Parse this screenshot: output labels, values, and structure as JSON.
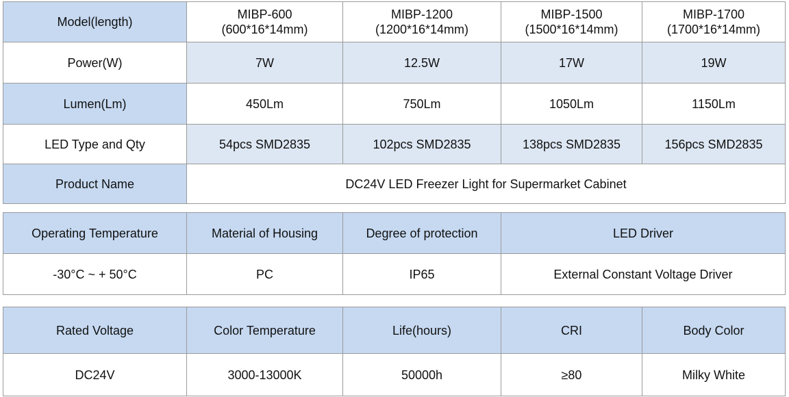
{
  "tables": [
    {
      "rows": [
        [
          "Model(length)",
          [
            "MIBP-600",
            "(600*16*14mm)"
          ],
          [
            "MIBP-1200",
            "(1200*16*14mm)"
          ],
          [
            "MIBP-1500",
            "(1500*16*14mm)"
          ],
          [
            "MIBP-1700",
            "(1700*16*14mm)"
          ]
        ],
        [
          "Power(W)",
          "7W",
          "12.5W",
          "17W",
          "19W"
        ],
        [
          "Lumen(Lm)",
          "450Lm",
          "750Lm",
          "1050Lm",
          "1150Lm"
        ],
        [
          "LED Type and Qty",
          "54pcs SMD2835",
          "102pcs SMD2835",
          "138pcs SMD2835",
          "156pcs SMD2835"
        ],
        [
          "Product Name",
          "DC24V LED Freezer Light for Supermarket Cabinet"
        ]
      ]
    },
    {
      "rows": [
        [
          "Operating Temperature",
          "Material of Housing",
          "Degree of protection",
          "LED Driver"
        ],
        [
          "-30°C ~ + 50°C",
          "PC",
          "IP65",
          "External Constant Voltage Driver"
        ]
      ]
    },
    {
      "rows": [
        [
          "Rated Voltage",
          "Color Temperature",
          "Life(hours)",
          "CRI",
          "Body Color"
        ],
        [
          "DC24V",
          "3000-13000K",
          "50000h",
          "≥80",
          "Milky White"
        ]
      ]
    }
  ]
}
